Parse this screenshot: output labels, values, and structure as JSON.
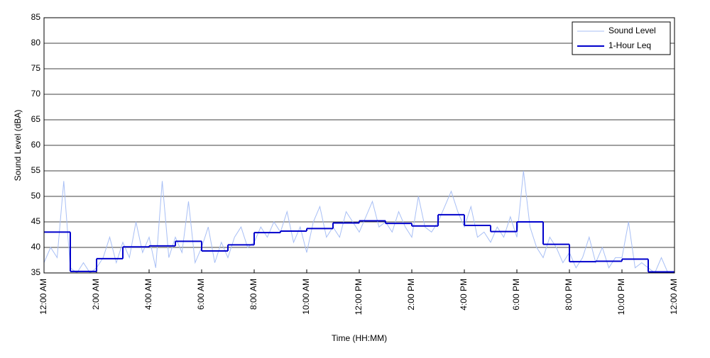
{
  "chart_data": {
    "type": "line",
    "xlabel": "Time (HH:MM)",
    "ylabel": "Sound Level (dBA)",
    "xlim": [
      0,
      24
    ],
    "ylim": [
      35,
      85
    ],
    "xticks": [
      {
        "value": 0,
        "label": "12:00 AM"
      },
      {
        "value": 2,
        "label": "2:00 AM"
      },
      {
        "value": 4,
        "label": "4:00 AM"
      },
      {
        "value": 6,
        "label": "6:00 AM"
      },
      {
        "value": 8,
        "label": "8:00 AM"
      },
      {
        "value": 10,
        "label": "10:00 AM"
      },
      {
        "value": 12,
        "label": "12:00 PM"
      },
      {
        "value": 14,
        "label": "2:00 PM"
      },
      {
        "value": 16,
        "label": "4:00 PM"
      },
      {
        "value": 18,
        "label": "6:00 PM"
      },
      {
        "value": 20,
        "label": "8:00 PM"
      },
      {
        "value": 22,
        "label": "10:00 PM"
      },
      {
        "value": 24,
        "label": "12:00 AM"
      }
    ],
    "yticks": [
      35,
      40,
      45,
      50,
      55,
      60,
      65,
      70,
      75,
      80,
      85
    ],
    "grid": true,
    "legend": "top-right",
    "series": [
      {
        "name": "Sound Level",
        "color": "#a8bff5",
        "style": "line",
        "x": [
          0,
          0.25,
          0.5,
          0.75,
          1,
          1.25,
          1.5,
          1.75,
          2,
          2.25,
          2.5,
          2.75,
          3,
          3.25,
          3.5,
          3.75,
          4,
          4.25,
          4.5,
          4.75,
          5,
          5.25,
          5.5,
          5.75,
          6,
          6.25,
          6.5,
          6.75,
          7,
          7.25,
          7.5,
          7.75,
          8,
          8.25,
          8.5,
          8.75,
          9,
          9.25,
          9.5,
          9.75,
          10,
          10.25,
          10.5,
          10.75,
          11,
          11.25,
          11.5,
          11.75,
          12,
          12.25,
          12.5,
          12.75,
          13,
          13.25,
          13.5,
          13.75,
          14,
          14.25,
          14.5,
          14.75,
          15,
          15.25,
          15.5,
          15.75,
          16,
          16.25,
          16.5,
          16.75,
          17,
          17.25,
          17.5,
          17.75,
          18,
          18.25,
          18.5,
          18.75,
          19,
          19.25,
          19.5,
          19.75,
          20,
          20.25,
          20.5,
          20.75,
          21,
          21.25,
          21.5,
          21.75,
          22,
          22.25,
          22.5,
          22.75,
          23,
          23.25,
          23.5,
          23.75,
          24
        ],
        "values": [
          37,
          40,
          38,
          53,
          36,
          35,
          37,
          35,
          36,
          38,
          42,
          37,
          41,
          38,
          45,
          39,
          42,
          36,
          53,
          38,
          42,
          39,
          49,
          37,
          40,
          44,
          37,
          41,
          38,
          42,
          44,
          40,
          41,
          44,
          42,
          45,
          43,
          47,
          41,
          44,
          39,
          45,
          48,
          42,
          44,
          42,
          47,
          45,
          43,
          46,
          49,
          44,
          45,
          43,
          47,
          44,
          42,
          50,
          44,
          43,
          45,
          48,
          51,
          47,
          44,
          48,
          42,
          43,
          41,
          44,
          42,
          46,
          42,
          55,
          44,
          40,
          38,
          42,
          40,
          37,
          39,
          36,
          38,
          42,
          37,
          40,
          36,
          38,
          38,
          45,
          36,
          37,
          36,
          35,
          38,
          35,
          35
        ]
      },
      {
        "name": "1-Hour Leq",
        "color": "#0000cc",
        "style": "step",
        "x": [
          0,
          1,
          2,
          3,
          4,
          5,
          6,
          7,
          8,
          9,
          10,
          11,
          12,
          13,
          14,
          15,
          16,
          17,
          18,
          19,
          20,
          21,
          22,
          23
        ],
        "values": [
          43,
          35.3,
          37.8,
          40.1,
          40.3,
          41.2,
          39.3,
          40.5,
          42.9,
          43.2,
          43.7,
          44.8,
          45.2,
          44.7,
          44.2,
          46.4,
          44.3,
          43.1,
          45,
          40.6,
          37.2,
          37.3,
          37.7,
          35.2
        ]
      }
    ]
  }
}
